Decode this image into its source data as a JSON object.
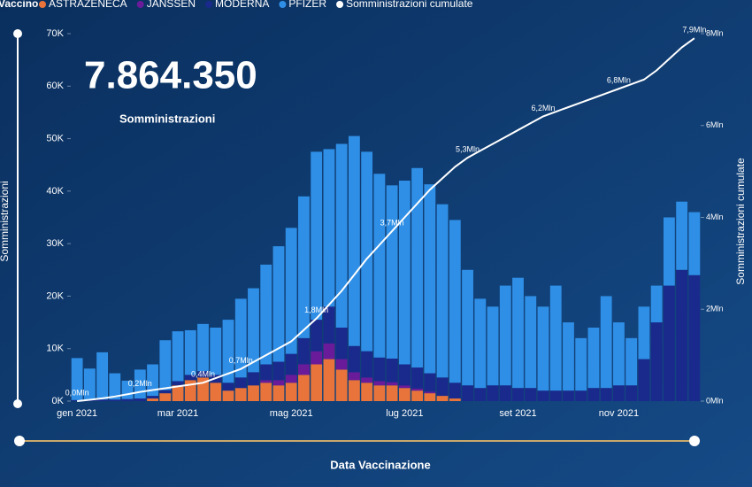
{
  "chart_data": {
    "type": "stacked_bar_line",
    "kpi": {
      "value": 7864350,
      "label": "7.864.350",
      "caption": "Somministrazioni"
    },
    "legend_title": "Vaccino",
    "ylabel": "Somministrazioni",
    "y2label": "Somministrazioni cumulate",
    "xlabel": "Data Vaccinazione",
    "categories": [
      "gen 2021",
      null,
      null,
      null,
      null,
      null,
      null,
      null,
      "mar 2021",
      null,
      null,
      null,
      null,
      null,
      null,
      null,
      null,
      "mag 2021",
      null,
      null,
      null,
      null,
      null,
      null,
      null,
      null,
      "lug 2021",
      null,
      null,
      null,
      null,
      null,
      null,
      null,
      null,
      "set 2021",
      null,
      null,
      null,
      null,
      null,
      null,
      null,
      "nov 2021",
      null,
      null,
      null,
      null,
      null,
      null
    ],
    "ylim": [
      0,
      70000
    ],
    "yticks": [
      {
        "value": 0,
        "label": "0K"
      },
      {
        "value": 10000,
        "label": "10K"
      },
      {
        "value": 20000,
        "label": "20K"
      },
      {
        "value": 30000,
        "label": "30K"
      },
      {
        "value": 40000,
        "label": "40K"
      },
      {
        "value": 50000,
        "label": "50K"
      },
      {
        "value": 60000,
        "label": "60K"
      },
      {
        "value": 70000,
        "label": "70K"
      }
    ],
    "y2lim": [
      0,
      8
    ],
    "y2ticks": [
      {
        "value": 0,
        "label": "0Mln"
      },
      {
        "value": 2,
        "label": "2Mln"
      },
      {
        "value": 4,
        "label": "4Mln"
      },
      {
        "value": 6,
        "label": "6Mln"
      },
      {
        "value": 8,
        "label": "8Mln"
      }
    ],
    "series": [
      {
        "name": "ASTRAZENECA",
        "color": "#e8743b",
        "values": [
          0,
          0,
          0,
          0,
          0,
          0,
          500,
          1500,
          3000,
          4000,
          4500,
          3500,
          2000,
          2500,
          3000,
          3500,
          3000,
          3500,
          5000,
          7000,
          8000,
          6000,
          4000,
          3500,
          3000,
          3000,
          2500,
          2000,
          1500,
          1000,
          500,
          0,
          0,
          0,
          0,
          0,
          0,
          0,
          0,
          0,
          0,
          0,
          0,
          0,
          0,
          0,
          0,
          0,
          0,
          0
        ]
      },
      {
        "name": "JANSSEN",
        "color": "#6a1b9a",
        "values": [
          0,
          0,
          0,
          0,
          0,
          0,
          0,
          0,
          0,
          0,
          0,
          0,
          0,
          0,
          0,
          500,
          1000,
          1500,
          2000,
          2500,
          3000,
          2000,
          1500,
          1000,
          800,
          600,
          500,
          400,
          300,
          0,
          0,
          0,
          0,
          0,
          0,
          0,
          0,
          0,
          0,
          0,
          0,
          0,
          0,
          0,
          0,
          0,
          0,
          0,
          0,
          0
        ]
      },
      {
        "name": "MODERNA",
        "color": "#1a2a8c",
        "values": [
          200,
          200,
          300,
          300,
          400,
          500,
          500,
          600,
          800,
          1000,
          1200,
          1500,
          1500,
          2000,
          2500,
          3000,
          3500,
          4000,
          5000,
          6000,
          7000,
          6000,
          5000,
          5000,
          4500,
          4500,
          4000,
          4000,
          3500,
          3500,
          3000,
          3000,
          2500,
          3000,
          3000,
          2500,
          2500,
          2000,
          2000,
          2000,
          2000,
          2500,
          2500,
          3000,
          3000,
          8000,
          15000,
          22000,
          25000,
          24000
        ]
      },
      {
        "name": "PFIZER",
        "color": "#2f8fe6",
        "values": [
          8000,
          6000,
          9000,
          5000,
          3500,
          5500,
          6000,
          9500,
          9500,
          8500,
          9000,
          9000,
          12000,
          15000,
          16000,
          19000,
          22000,
          24000,
          27000,
          32000,
          30000,
          35000,
          40000,
          38000,
          35000,
          33000,
          35000,
          38000,
          36000,
          33000,
          31000,
          22000,
          17000,
          15000,
          19000,
          21000,
          17500,
          16000,
          20000,
          13000,
          10000,
          11500,
          17500,
          12000,
          9000,
          10000,
          7000,
          13000,
          13000,
          12000
        ]
      },
      {
        "name": "Somministrazioni cumulate",
        "color": "#ffffff",
        "axis": "y2",
        "type": "line",
        "values": [
          0.0,
          0.03,
          0.06,
          0.1,
          0.15,
          0.2,
          0.24,
          0.28,
          0.32,
          0.36,
          0.4,
          0.5,
          0.6,
          0.7,
          0.85,
          1.0,
          1.15,
          1.3,
          1.55,
          1.8,
          2.1,
          2.4,
          2.75,
          3.1,
          3.4,
          3.7,
          4.0,
          4.3,
          4.6,
          4.85,
          5.1,
          5.3,
          5.45,
          5.6,
          5.75,
          5.9,
          6.05,
          6.2,
          6.3,
          6.4,
          6.5,
          6.6,
          6.7,
          6.8,
          6.9,
          7.0,
          7.2,
          7.45,
          7.7,
          7.9
        ],
        "value_labels": [
          "0,0Mln",
          null,
          null,
          null,
          null,
          "0,2Mln",
          null,
          null,
          null,
          null,
          "0,4Mln",
          null,
          null,
          "0,7Mln",
          null,
          null,
          null,
          null,
          null,
          "1,8Mln",
          null,
          null,
          null,
          null,
          null,
          "3,7Mln",
          null,
          null,
          null,
          null,
          null,
          "5,3Mln",
          null,
          null,
          null,
          null,
          null,
          "6,2Mln",
          null,
          null,
          null,
          null,
          null,
          "6,8Mln",
          null,
          null,
          null,
          null,
          null,
          "7,9Mln"
        ]
      }
    ]
  }
}
